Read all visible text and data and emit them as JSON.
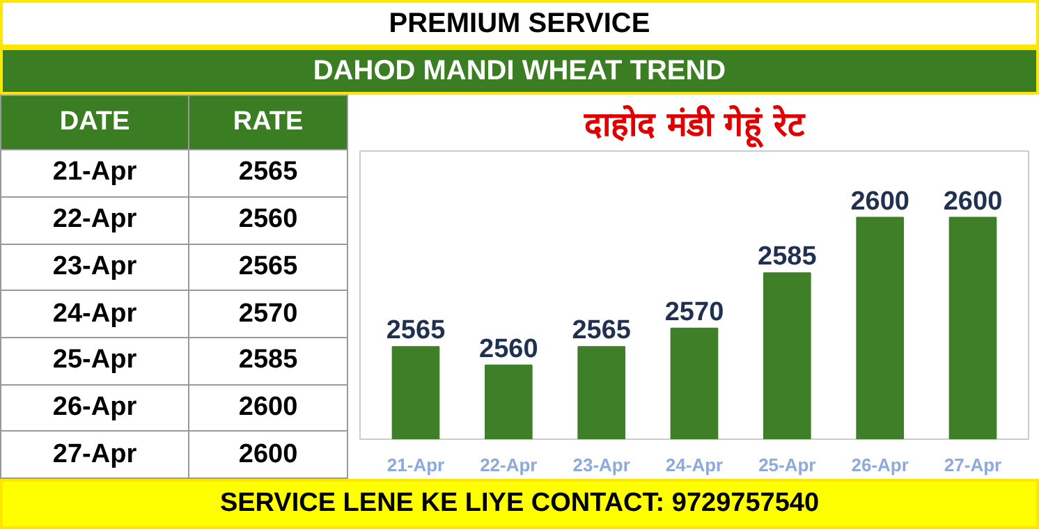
{
  "chart_data": {
    "type": "bar",
    "title": "दाहोद मंडी गेहूं रेट",
    "subtitle": "DAHOD MANDI WHEAT TREND",
    "categories": [
      "21-Apr",
      "22-Apr",
      "23-Apr",
      "24-Apr",
      "25-Apr",
      "26-Apr",
      "27-Apr"
    ],
    "values": [
      2565,
      2560,
      2565,
      2570,
      2585,
      2600,
      2600
    ],
    "value_labels": [
      "2565",
      "2560",
      "2565",
      "2570",
      "2585",
      "2600",
      "2600"
    ],
    "color": "#3f7f28",
    "ylim": [
      2540,
      2618
    ],
    "grid": false,
    "annotations": [
      "PREMIUM SERVICE",
      "DATE",
      "RATE",
      "SERVICE LENE KE LIYE CONTACT: 9729757540"
    ]
  }
}
